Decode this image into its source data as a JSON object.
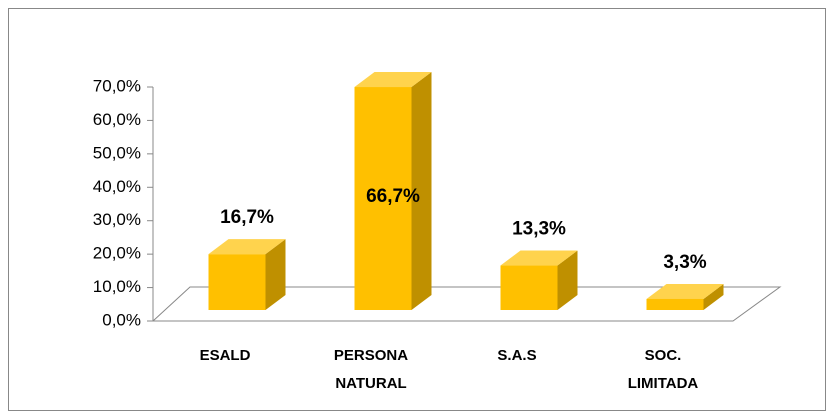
{
  "chart_data": {
    "type": "bar3d",
    "categories": [
      "ESALD",
      "PERSONA NATURAL",
      "S.A.S",
      "SOC. LIMITADA"
    ],
    "values": [
      16.7,
      66.7,
      13.3,
      3.3
    ],
    "value_labels": [
      "16,7%",
      "66,7%",
      "13,3%",
      "3,3%"
    ],
    "color": "#ffc000",
    "ylim": [
      0,
      70
    ],
    "yticks": [
      {
        "value": 0,
        "label": "0,0%"
      },
      {
        "value": 10,
        "label": "10,0%"
      },
      {
        "value": 20,
        "label": "20,0%"
      },
      {
        "value": 30,
        "label": "30,0%"
      },
      {
        "value": 40,
        "label": "40,0%"
      },
      {
        "value": 50,
        "label": "50,0%"
      },
      {
        "value": 60,
        "label": "60,0%"
      },
      {
        "value": 70,
        "label": "70,0%"
      }
    ]
  }
}
